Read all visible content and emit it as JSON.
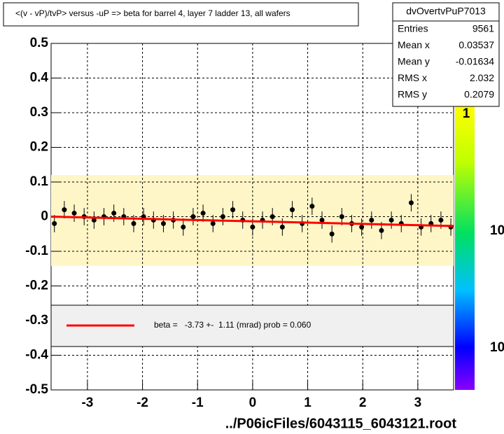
{
  "chart_data": {
    "type": "scatter",
    "title": "<(v - vP)/tvP> versus  -uP => beta for barrel 4, layer 7 ladder 13, all wafers",
    "xlabel": "../P06icFiles/6043115_6043121.root",
    "xlim": [
      -3.66,
      3.65
    ],
    "ylim": [
      -0.5,
      0.5
    ],
    "xticks": [
      -3,
      -2,
      -1,
      0,
      1,
      2,
      3
    ],
    "yticks": [
      0.5,
      0.4,
      0.3,
      0.2,
      0.1,
      0,
      -0.1,
      -0.2,
      -0.3,
      -0.4,
      -0.5
    ],
    "grid": true,
    "x": [
      -3.6,
      -3.42,
      -3.24,
      -3.06,
      -2.88,
      -2.7,
      -2.52,
      -2.34,
      -2.16,
      -1.98,
      -1.8,
      -1.62,
      -1.44,
      -1.26,
      -1.08,
      -0.9,
      -0.72,
      -0.54,
      -0.36,
      -0.18,
      0,
      0.18,
      0.36,
      0.54,
      0.72,
      0.9,
      1.08,
      1.26,
      1.44,
      1.62,
      1.8,
      1.98,
      2.16,
      2.34,
      2.52,
      2.7,
      2.88,
      3.06,
      3.24,
      3.42,
      3.6
    ],
    "series": [
      {
        "color": "#000000",
        "values": [
          -0.02,
          0.02,
          0.01,
          0.0,
          -0.01,
          0.0,
          0.01,
          0.0,
          -0.02,
          0.0,
          -0.01,
          -0.02,
          -0.01,
          -0.03,
          0.0,
          0.01,
          -0.02,
          0.0,
          0.02,
          -0.01,
          -0.03,
          -0.01,
          0.0,
          -0.03,
          0.02,
          -0.02,
          0.03,
          -0.01,
          -0.05,
          0.0,
          -0.02,
          -0.03,
          -0.01,
          -0.04,
          -0.01,
          -0.02,
          0.04,
          -0.03,
          -0.02,
          -0.01,
          -0.03
        ],
        "errors": [
          0.025,
          0.025,
          0.025,
          0.025,
          0.025,
          0.025,
          0.025,
          0.025,
          0.025,
          0.025,
          0.025,
          0.025,
          0.025,
          0.025,
          0.025,
          0.025,
          0.025,
          0.025,
          0.025,
          0.025,
          0.025,
          0.025,
          0.025,
          0.025,
          0.025,
          0.025,
          0.025,
          0.025,
          0.025,
          0.025,
          0.025,
          0.025,
          0.025,
          0.025,
          0.025,
          0.025,
          0.025,
          0.025,
          0.025,
          0.025,
          0.025
        ]
      }
    ],
    "fit": {
      "color": "#ff0000",
      "x": [
        -3.66,
        3.65
      ],
      "values": [
        0.0,
        -0.027
      ]
    },
    "legend": {
      "text": "beta =   -3.73 +-  1.11 (mrad) prob = 0.060"
    }
  },
  "stats": {
    "title": "dvOvertvPuP7013",
    "rows": [
      [
        "Entries",
        "9561"
      ],
      [
        "Mean x",
        "0.03537"
      ],
      [
        "Mean y",
        "-0.01634"
      ],
      [
        "RMS x",
        "2.032"
      ],
      [
        "RMS y",
        "0.2079"
      ]
    ]
  },
  "palette_labels": [
    "1",
    "10",
    "10"
  ]
}
